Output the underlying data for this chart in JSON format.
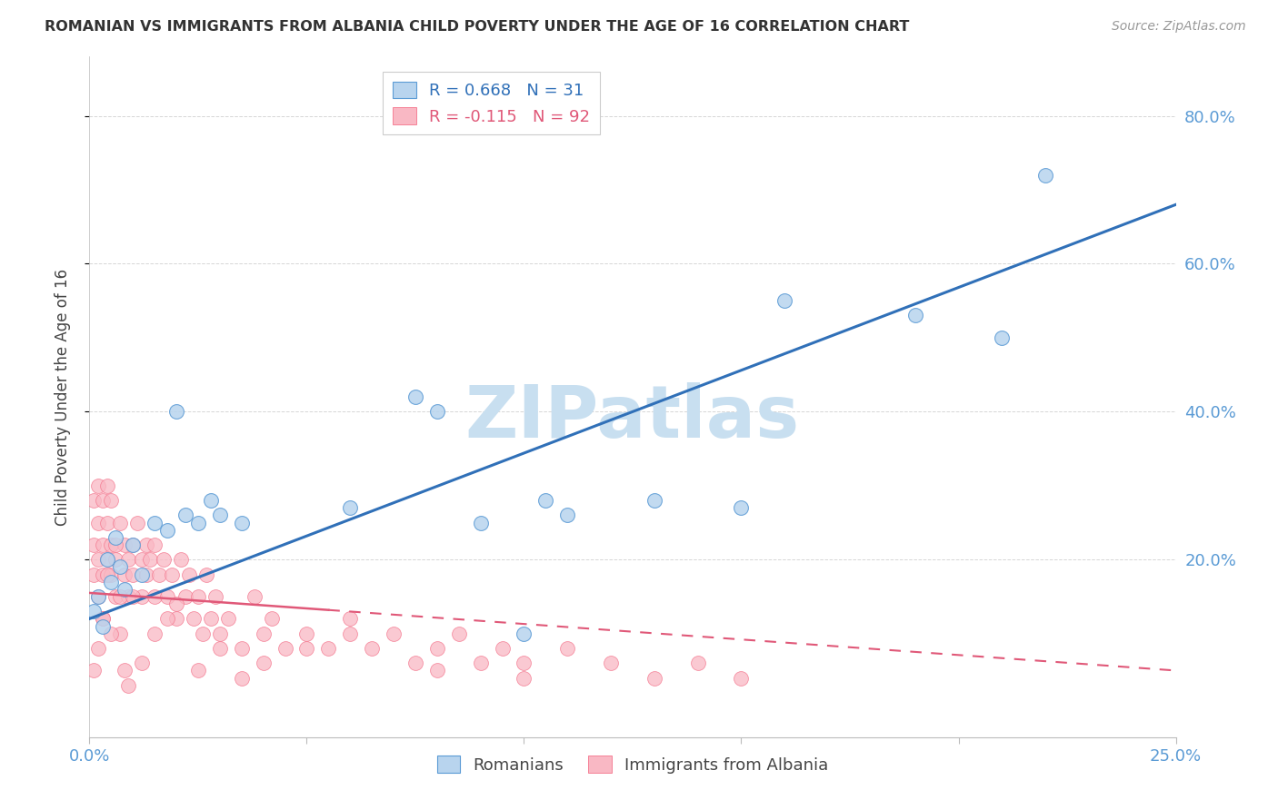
{
  "title": "ROMANIAN VS IMMIGRANTS FROM ALBANIA CHILD POVERTY UNDER THE AGE OF 16 CORRELATION CHART",
  "source": "Source: ZipAtlas.com",
  "tick_color": "#5b9bd5",
  "ylabel": "Child Poverty Under the Age of 16",
  "legend_label_romanian": "Romanians",
  "legend_label_albania": "Immigrants from Albania",
  "R_romanian": 0.668,
  "N_romanian": 31,
  "R_albania": -0.115,
  "N_albania": 92,
  "xlim": [
    0.0,
    0.25
  ],
  "ylim": [
    -0.04,
    0.88
  ],
  "y_ticks": [
    0.2,
    0.4,
    0.6,
    0.8
  ],
  "y_tick_labels": [
    "20.0%",
    "40.0%",
    "60.0%",
    "80.0%"
  ],
  "x_ticks": [
    0.0,
    0.05,
    0.1,
    0.15,
    0.2,
    0.25
  ],
  "x_tick_labels": [
    "0.0%",
    "",
    "",
    "",
    "",
    "25.0%"
  ],
  "color_romanian": "#b8d4ee",
  "color_albania": "#f9b8c4",
  "edge_color_romanian": "#5b9bd5",
  "edge_color_albania": "#f4728a",
  "line_color_romanian": "#3070b8",
  "line_color_albania": "#e05878",
  "background_color": "#ffffff",
  "watermark": "ZIPatlas",
  "watermark_color": "#c8dff0",
  "rom_line_y0": 0.12,
  "rom_line_y1": 0.68,
  "alb_line_y0": 0.155,
  "alb_line_y1": 0.05,
  "romanian_x": [
    0.001,
    0.002,
    0.003,
    0.004,
    0.005,
    0.006,
    0.007,
    0.008,
    0.01,
    0.012,
    0.015,
    0.018,
    0.02,
    0.022,
    0.025,
    0.028,
    0.03,
    0.035,
    0.06,
    0.075,
    0.08,
    0.09,
    0.1,
    0.105,
    0.11,
    0.13,
    0.15,
    0.16,
    0.19,
    0.21,
    0.22
  ],
  "romanian_y": [
    0.13,
    0.15,
    0.11,
    0.2,
    0.17,
    0.23,
    0.19,
    0.16,
    0.22,
    0.18,
    0.25,
    0.24,
    0.4,
    0.26,
    0.25,
    0.28,
    0.26,
    0.25,
    0.27,
    0.42,
    0.4,
    0.25,
    0.1,
    0.28,
    0.26,
    0.28,
    0.27,
    0.55,
    0.53,
    0.5,
    0.72
  ],
  "albania_x": [
    0.001,
    0.001,
    0.001,
    0.002,
    0.002,
    0.002,
    0.002,
    0.003,
    0.003,
    0.003,
    0.003,
    0.004,
    0.004,
    0.004,
    0.005,
    0.005,
    0.005,
    0.006,
    0.006,
    0.007,
    0.007,
    0.008,
    0.008,
    0.009,
    0.009,
    0.01,
    0.01,
    0.011,
    0.012,
    0.012,
    0.013,
    0.013,
    0.014,
    0.015,
    0.015,
    0.016,
    0.017,
    0.018,
    0.019,
    0.02,
    0.021,
    0.022,
    0.023,
    0.024,
    0.025,
    0.026,
    0.027,
    0.028,
    0.029,
    0.03,
    0.032,
    0.035,
    0.038,
    0.04,
    0.042,
    0.045,
    0.05,
    0.055,
    0.06,
    0.065,
    0.07,
    0.075,
    0.08,
    0.085,
    0.09,
    0.095,
    0.1,
    0.11,
    0.12,
    0.13,
    0.14,
    0.15,
    0.001,
    0.002,
    0.003,
    0.004,
    0.005,
    0.006,
    0.007,
    0.008,
    0.009,
    0.01,
    0.012,
    0.015,
    0.018,
    0.02,
    0.025,
    0.03,
    0.035,
    0.04,
    0.05,
    0.06,
    0.08,
    0.1
  ],
  "albania_y": [
    0.18,
    0.22,
    0.28,
    0.2,
    0.25,
    0.3,
    0.15,
    0.22,
    0.18,
    0.28,
    0.12,
    0.25,
    0.2,
    0.3,
    0.18,
    0.22,
    0.28,
    0.2,
    0.15,
    0.25,
    0.1,
    0.18,
    0.22,
    0.15,
    0.2,
    0.22,
    0.18,
    0.25,
    0.2,
    0.15,
    0.22,
    0.18,
    0.2,
    0.15,
    0.22,
    0.18,
    0.2,
    0.15,
    0.18,
    0.12,
    0.2,
    0.15,
    0.18,
    0.12,
    0.15,
    0.1,
    0.18,
    0.12,
    0.15,
    0.1,
    0.12,
    0.08,
    0.15,
    0.1,
    0.12,
    0.08,
    0.1,
    0.08,
    0.12,
    0.08,
    0.1,
    0.06,
    0.08,
    0.1,
    0.06,
    0.08,
    0.06,
    0.08,
    0.06,
    0.04,
    0.06,
    0.04,
    0.05,
    0.08,
    0.12,
    0.18,
    0.1,
    0.22,
    0.15,
    0.05,
    0.03,
    0.15,
    0.06,
    0.1,
    0.12,
    0.14,
    0.05,
    0.08,
    0.04,
    0.06,
    0.08,
    0.1,
    0.05,
    0.04
  ]
}
